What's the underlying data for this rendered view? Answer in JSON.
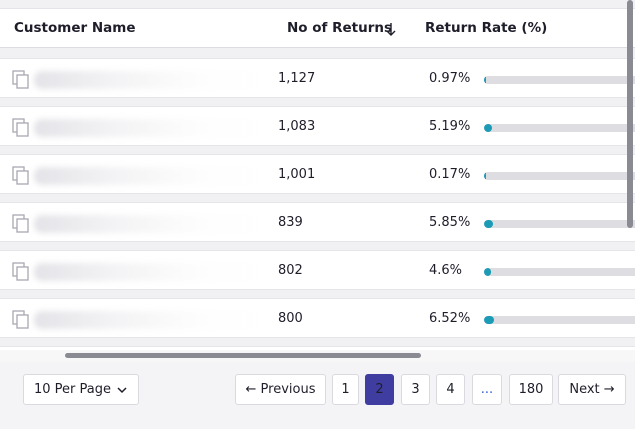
{
  "table": {
    "headers": {
      "customer_name": "Customer Name",
      "returns": "No of Returns",
      "rate": "Return Rate (%)"
    },
    "sort_icon": "arrow-down-icon",
    "copy_icon": "copy-icon",
    "rows": [
      {
        "customer_name": "",
        "returns": "1,127",
        "rate": "0.97%",
        "rate_value": 0.97
      },
      {
        "customer_name": "",
        "returns": "1,083",
        "rate": "5.19%",
        "rate_value": 5.19
      },
      {
        "customer_name": "",
        "returns": "1,001",
        "rate": "0.17%",
        "rate_value": 0.17
      },
      {
        "customer_name": "",
        "returns": "839",
        "rate": "5.85%",
        "rate_value": 5.85
      },
      {
        "customer_name": "",
        "returns": "802",
        "rate": "4.6%",
        "rate_value": 4.6
      },
      {
        "customer_name": "",
        "returns": "800",
        "rate": "6.52%",
        "rate_value": 6.52
      }
    ],
    "bar_scale_max": 100,
    "colors": {
      "bar_fill": "#1b9bb5",
      "bar_track": "#dedee2",
      "active_page": "#3f3ea0"
    }
  },
  "pagination": {
    "per_page": "10 Per Page",
    "previous": "← Previous",
    "pages": [
      "1",
      "2",
      "3",
      "4",
      "...",
      "180"
    ],
    "current_page": "2",
    "next": "Next →"
  }
}
